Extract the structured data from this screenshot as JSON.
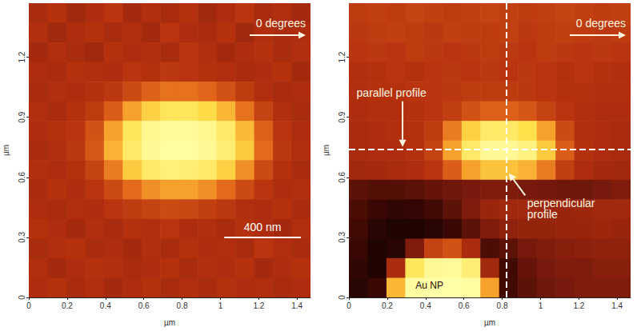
{
  "chart_data": [
    {
      "type": "heatmap",
      "xlabel": "µm",
      "ylabel": "µm",
      "xlim": [
        0,
        1.47
      ],
      "ylim": [
        0,
        1.47
      ],
      "xticks": [
        0,
        0.2,
        0.4,
        0.6,
        0.8,
        1,
        1.2,
        1.4
      ],
      "yticks": [
        0,
        0.3,
        0.6,
        0.9,
        1.2
      ],
      "zlim": [
        0,
        1
      ],
      "cell_x": [
        0.049,
        0.147,
        0.245,
        0.343,
        0.441,
        0.539,
        0.637,
        0.735,
        0.833,
        0.931,
        1.029,
        1.127,
        1.225,
        1.323,
        1.421
      ],
      "cell_y": [
        1.421,
        1.323,
        1.225,
        1.127,
        1.029,
        0.931,
        0.833,
        0.735,
        0.637,
        0.539,
        0.441,
        0.343,
        0.245,
        0.147,
        0.049
      ],
      "cells": [
        [
          0.4,
          0.43,
          0.38,
          0.41,
          0.44,
          0.39,
          0.42,
          0.4,
          0.43,
          0.38,
          0.41,
          0.44,
          0.4,
          0.42,
          0.39
        ],
        [
          0.42,
          0.38,
          0.41,
          0.43,
          0.4,
          0.42,
          0.39,
          0.44,
          0.41,
          0.4,
          0.43,
          0.38,
          0.42,
          0.4,
          0.41
        ],
        [
          0.39,
          0.42,
          0.4,
          0.38,
          0.43,
          0.41,
          0.42,
          0.4,
          0.44,
          0.42,
          0.39,
          0.41,
          0.43,
          0.4,
          0.42
        ],
        [
          0.41,
          0.4,
          0.43,
          0.42,
          0.41,
          0.44,
          0.43,
          0.45,
          0.44,
          0.43,
          0.42,
          0.4,
          0.41,
          0.43,
          0.39
        ],
        [
          0.4,
          0.42,
          0.41,
          0.43,
          0.45,
          0.5,
          0.56,
          0.6,
          0.6,
          0.57,
          0.52,
          0.46,
          0.42,
          0.4,
          0.41
        ],
        [
          0.42,
          0.4,
          0.43,
          0.46,
          0.55,
          0.7,
          0.82,
          0.88,
          0.88,
          0.85,
          0.75,
          0.6,
          0.48,
          0.42,
          0.4
        ],
        [
          0.41,
          0.43,
          0.44,
          0.52,
          0.7,
          0.88,
          0.96,
          0.98,
          0.98,
          0.96,
          0.9,
          0.76,
          0.56,
          0.44,
          0.41
        ],
        [
          0.4,
          0.42,
          0.45,
          0.54,
          0.74,
          0.9,
          0.97,
          0.99,
          0.99,
          0.97,
          0.92,
          0.8,
          0.58,
          0.45,
          0.42
        ],
        [
          0.42,
          0.41,
          0.43,
          0.48,
          0.62,
          0.8,
          0.9,
          0.93,
          0.92,
          0.9,
          0.82,
          0.66,
          0.5,
          0.43,
          0.4
        ],
        [
          0.4,
          0.43,
          0.41,
          0.44,
          0.5,
          0.58,
          0.66,
          0.7,
          0.7,
          0.66,
          0.58,
          0.5,
          0.44,
          0.41,
          0.42
        ],
        [
          0.41,
          0.4,
          0.42,
          0.41,
          0.44,
          0.46,
          0.48,
          0.5,
          0.49,
          0.47,
          0.45,
          0.42,
          0.41,
          0.43,
          0.4
        ],
        [
          0.43,
          0.41,
          0.39,
          0.42,
          0.4,
          0.43,
          0.42,
          0.44,
          0.41,
          0.42,
          0.4,
          0.43,
          0.41,
          0.39,
          0.42
        ],
        [
          0.4,
          0.42,
          0.43,
          0.4,
          0.41,
          0.39,
          0.42,
          0.4,
          0.43,
          0.41,
          0.42,
          0.4,
          0.44,
          0.42,
          0.4
        ],
        [
          0.42,
          0.39,
          0.41,
          0.43,
          0.42,
          0.4,
          0.41,
          0.43,
          0.4,
          0.42,
          0.41,
          0.43,
          0.39,
          0.41,
          0.43
        ],
        [
          0.41,
          0.43,
          0.4,
          0.42,
          0.39,
          0.41,
          0.43,
          0.4,
          0.42,
          0.4,
          0.43,
          0.41,
          0.42,
          0.4,
          0.41
        ]
      ],
      "direction_label": "0 degrees",
      "scale_bar": {
        "label": "400 nm",
        "length": 0.4
      }
    },
    {
      "type": "heatmap",
      "xlabel": "µm",
      "ylabel": "µm",
      "xlim": [
        0,
        1.47
      ],
      "ylim": [
        0,
        1.47
      ],
      "xticks": [
        0,
        0.2,
        0.4,
        0.6,
        0.8,
        1,
        1.2,
        1.4
      ],
      "yticks": [
        0,
        0.3,
        0.6,
        0.9,
        1.2
      ],
      "zlim": [
        0,
        1
      ],
      "cell_x": [
        0.049,
        0.147,
        0.245,
        0.343,
        0.441,
        0.539,
        0.637,
        0.735,
        0.833,
        0.931,
        1.029,
        1.127,
        1.225,
        1.323,
        1.421
      ],
      "cell_y": [
        1.421,
        1.323,
        1.225,
        1.127,
        1.029,
        0.931,
        0.833,
        0.735,
        0.637,
        0.539,
        0.441,
        0.343,
        0.245,
        0.147,
        0.049
      ],
      "cells": [
        [
          0.46,
          0.47,
          0.46,
          0.48,
          0.47,
          0.46,
          0.47,
          0.48,
          0.47,
          0.46,
          0.47,
          0.48,
          0.47,
          0.46,
          0.47
        ],
        [
          0.45,
          0.46,
          0.47,
          0.46,
          0.45,
          0.47,
          0.46,
          0.46,
          0.47,
          0.45,
          0.46,
          0.47,
          0.46,
          0.45,
          0.46
        ],
        [
          0.44,
          0.45,
          0.44,
          0.46,
          0.45,
          0.44,
          0.45,
          0.46,
          0.45,
          0.44,
          0.46,
          0.45,
          0.44,
          0.45,
          0.44
        ],
        [
          0.42,
          0.43,
          0.44,
          0.43,
          0.44,
          0.45,
          0.44,
          0.45,
          0.44,
          0.45,
          0.44,
          0.43,
          0.44,
          0.43,
          0.42
        ],
        [
          0.42,
          0.43,
          0.43,
          0.44,
          0.44,
          0.45,
          0.46,
          0.46,
          0.46,
          0.45,
          0.44,
          0.43,
          0.43,
          0.42,
          0.42
        ],
        [
          0.41,
          0.42,
          0.42,
          0.43,
          0.44,
          0.47,
          0.52,
          0.56,
          0.56,
          0.53,
          0.48,
          0.44,
          0.42,
          0.41,
          0.41
        ],
        [
          0.4,
          0.41,
          0.42,
          0.43,
          0.46,
          0.62,
          0.82,
          0.9,
          0.9,
          0.86,
          0.7,
          0.5,
          0.42,
          0.41,
          0.4
        ],
        [
          0.4,
          0.41,
          0.41,
          0.43,
          0.48,
          0.7,
          0.9,
          0.97,
          0.97,
          0.94,
          0.8,
          0.55,
          0.43,
          0.41,
          0.4
        ],
        [
          0.38,
          0.39,
          0.4,
          0.41,
          0.44,
          0.55,
          0.7,
          0.78,
          0.78,
          0.74,
          0.62,
          0.47,
          0.41,
          0.39,
          0.38
        ],
        [
          0.22,
          0.2,
          0.2,
          0.22,
          0.24,
          0.26,
          0.28,
          0.3,
          0.3,
          0.28,
          0.27,
          0.26,
          0.26,
          0.28,
          0.3
        ],
        [
          0.18,
          0.14,
          0.12,
          0.13,
          0.16,
          0.22,
          0.3,
          0.36,
          0.38,
          0.38,
          0.36,
          0.36,
          0.37,
          0.38,
          0.38
        ],
        [
          0.16,
          0.1,
          0.08,
          0.08,
          0.1,
          0.14,
          0.22,
          0.3,
          0.34,
          0.35,
          0.35,
          0.36,
          0.36,
          0.37,
          0.36
        ],
        [
          0.14,
          0.08,
          0.1,
          0.3,
          0.48,
          0.52,
          0.4,
          0.18,
          0.22,
          0.28,
          0.3,
          0.32,
          0.33,
          0.34,
          0.34
        ],
        [
          0.12,
          0.08,
          0.4,
          0.88,
          0.97,
          0.98,
          0.92,
          0.38,
          0.16,
          0.24,
          0.28,
          0.3,
          0.3,
          0.32,
          0.32
        ],
        [
          0.1,
          0.14,
          0.75,
          0.99,
          1.0,
          1.0,
          0.99,
          0.7,
          0.16,
          0.22,
          0.26,
          0.28,
          0.3,
          0.3,
          0.3
        ]
      ],
      "direction_label": "0 degrees",
      "profiles": [
        {
          "label": "parallel profile",
          "y": 0.74
        },
        {
          "label": "perpendicular profile",
          "x": 0.82
        }
      ],
      "feature_label": "Au NP"
    }
  ]
}
